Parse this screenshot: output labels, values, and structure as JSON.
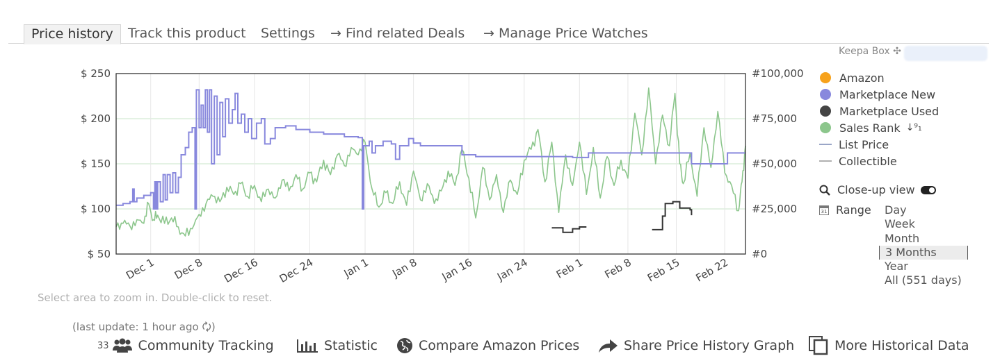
{
  "tabs": [
    {
      "label": "Price history",
      "active": true
    },
    {
      "label": "Track this product"
    },
    {
      "label": "Settings"
    },
    {
      "label": "→ Find related Deals"
    },
    {
      "label": "→ Manage Price Watches"
    }
  ],
  "keepa_box": "Keepa Box ✣",
  "legend": [
    {
      "label": "Amazon",
      "color": "#f7a21b",
      "kind": "dot"
    },
    {
      "label": "Marketplace New",
      "color": "#8888dd",
      "kind": "dot"
    },
    {
      "label": "Marketplace Used",
      "color": "#444444",
      "kind": "dot"
    },
    {
      "label": "Sales Rank",
      "color": "#8cc68c",
      "kind": "dot",
      "suffix": "↓⁹₁"
    },
    {
      "label": "List Price",
      "color": "#9aa6c7",
      "kind": "line"
    },
    {
      "label": "Collectible",
      "color": "#b0b0b0",
      "kind": "line"
    }
  ],
  "closeup_label": "Close-up view",
  "range": {
    "label": "Range",
    "options": [
      "Day",
      "Week",
      "Month",
      "3 Months",
      "Year",
      "All (551 days)"
    ],
    "selected": "3 Months"
  },
  "hint": "Select area to zoom in. Double-click to reset.",
  "last_update": "(last update: 1 hour ago 🗘)",
  "footer": {
    "community_count": "33",
    "community": "Community Tracking",
    "statistic": "Statistic",
    "compare": "Compare Amazon Prices",
    "share": "Share Price History Graph",
    "more": "More Historical Data"
  },
  "chart_data": {
    "type": "line",
    "x_unit": "day offset from Nov 26",
    "x_range": [
      0,
      91
    ],
    "x_ticks": [
      {
        "label": "Dec 1",
        "day": 5
      },
      {
        "label": "Dec 8",
        "day": 12
      },
      {
        "label": "Dec 16",
        "day": 20
      },
      {
        "label": "Dec 24",
        "day": 28
      },
      {
        "label": "Jan 1",
        "day": 36
      },
      {
        "label": "Jan 8",
        "day": 43
      },
      {
        "label": "Jan 16",
        "day": 51
      },
      {
        "label": "Jan 24",
        "day": 59
      },
      {
        "label": "Feb 1",
        "day": 67
      },
      {
        "label": "Feb 8",
        "day": 74
      },
      {
        "label": "Feb 15",
        "day": 81
      },
      {
        "label": "Feb 22",
        "day": 88
      }
    ],
    "y_left": {
      "ticks": [
        "$ 50",
        "$ 100",
        "$ 150",
        "$ 200",
        "$ 250"
      ],
      "values": [
        50,
        100,
        150,
        200,
        250
      ],
      "range": [
        50,
        250
      ]
    },
    "y_right": {
      "ticks": [
        "#0",
        "#25,000",
        "#50,000",
        "#75,000",
        "#100,000"
      ],
      "values": [
        0,
        25000,
        50000,
        75000,
        100000
      ],
      "range": [
        0,
        100000
      ]
    },
    "series": [
      {
        "name": "Marketplace New",
        "axis": "left",
        "color": "#8888dd",
        "points": [
          [
            0,
            104
          ],
          [
            1,
            106
          ],
          [
            2,
            108
          ],
          [
            2.4,
            122
          ],
          [
            2.6,
            108
          ],
          [
            3,
            112
          ],
          [
            4,
            115
          ],
          [
            5,
            118
          ],
          [
            5.4,
            100
          ],
          [
            5.6,
            130
          ],
          [
            5.8,
            100
          ],
          [
            6,
            130
          ],
          [
            6.4,
            108
          ],
          [
            6.8,
            138
          ],
          [
            7.1,
            110
          ],
          [
            7.4,
            138
          ],
          [
            7.8,
            118
          ],
          [
            8.2,
            140
          ],
          [
            8.6,
            118
          ],
          [
            9,
            135
          ],
          [
            9.4,
            160
          ],
          [
            10,
            168
          ],
          [
            10.5,
            185
          ],
          [
            11,
            190
          ],
          [
            11.4,
            100
          ],
          [
            11.6,
            232
          ],
          [
            11.9,
            232
          ],
          [
            12,
            190
          ],
          [
            12.3,
            215
          ],
          [
            12.6,
            190
          ],
          [
            12.9,
            232
          ],
          [
            13.2,
            185
          ],
          [
            13.5,
            232
          ],
          [
            13.8,
            150
          ],
          [
            14.2,
            225
          ],
          [
            14.6,
            160
          ],
          [
            15,
            218
          ],
          [
            15.4,
            180
          ],
          [
            15.8,
            222
          ],
          [
            16.3,
            195
          ],
          [
            16.8,
            210
          ],
          [
            17.2,
            228
          ],
          [
            17.6,
            195
          ],
          [
            18.1,
            205
          ],
          [
            18.6,
            185
          ],
          [
            19.1,
            200
          ],
          [
            19.6,
            178
          ],
          [
            20.3,
            195
          ],
          [
            21,
            200
          ],
          [
            21.5,
            172
          ],
          [
            22.3,
            178
          ],
          [
            23,
            190
          ],
          [
            24.5,
            192
          ],
          [
            26,
            188
          ],
          [
            28,
            185
          ],
          [
            30,
            183
          ],
          [
            33,
            180
          ],
          [
            35,
            179
          ],
          [
            35.6,
            100
          ],
          [
            35.8,
            170
          ],
          [
            36.6,
            175
          ],
          [
            37,
            162
          ],
          [
            37.5,
            170
          ],
          [
            38.6,
            175
          ],
          [
            39.8,
            172
          ],
          [
            40.4,
            155
          ],
          [
            41,
            170
          ],
          [
            42,
            170
          ],
          [
            42.3,
            178
          ],
          [
            43,
            173
          ],
          [
            44,
            170
          ],
          [
            48,
            170
          ],
          [
            50,
            160
          ],
          [
            52,
            158
          ],
          [
            54,
            158
          ],
          [
            58,
            158
          ],
          [
            62,
            158
          ],
          [
            66,
            157
          ],
          [
            68,
            157
          ],
          [
            68.3,
            162
          ],
          [
            75,
            162
          ],
          [
            82,
            162
          ],
          [
            83.2,
            150
          ],
          [
            88,
            150
          ],
          [
            88.4,
            162
          ],
          [
            91,
            162
          ]
        ]
      },
      {
        "name": "Marketplace Used",
        "axis": "left",
        "color": "#333333",
        "segments": [
          [
            [
              63,
              79
            ],
            [
              64.2,
              79
            ],
            [
              64.6,
              74
            ],
            [
              65.6,
              74
            ],
            [
              66,
              78
            ],
            [
              67,
              80
            ],
            [
              68,
              80
            ]
          ],
          [
            [
              77.5,
              77
            ],
            [
              78.5,
              77
            ],
            [
              79,
              92
            ],
            [
              79.4,
              106
            ],
            [
              80.5,
              108
            ],
            [
              81.5,
              101
            ],
            [
              83,
              99
            ],
            [
              83.2,
              93
            ]
          ]
        ]
      },
      {
        "name": "Sales Rank",
        "axis": "right",
        "color": "#8cc68c",
        "points": [
          [
            0,
            15000
          ],
          [
            1,
            17000
          ],
          [
            2,
            15500
          ],
          [
            3,
            19000
          ],
          [
            4,
            17000
          ],
          [
            4.7,
            28000
          ],
          [
            5.4,
            19000
          ],
          [
            6,
            21500
          ],
          [
            7,
            17000
          ],
          [
            8,
            20000
          ],
          [
            9,
            15000
          ],
          [
            10,
            10000
          ],
          [
            11,
            14000
          ],
          [
            12,
            22000
          ],
          [
            13,
            28000
          ],
          [
            14,
            32000
          ],
          [
            15,
            29000
          ],
          [
            16,
            37000
          ],
          [
            17,
            33000
          ],
          [
            18,
            39000
          ],
          [
            19,
            32000
          ],
          [
            20,
            38000
          ],
          [
            21,
            29000
          ],
          [
            22,
            36000
          ],
          [
            23,
            31000
          ],
          [
            24,
            41000
          ],
          [
            25,
            35000
          ],
          [
            26,
            44000
          ],
          [
            27,
            36000
          ],
          [
            28,
            45000
          ],
          [
            29,
            40000
          ],
          [
            30,
            52000
          ],
          [
            31,
            44000
          ],
          [
            32,
            55000
          ],
          [
            33,
            49000
          ],
          [
            34,
            59000
          ],
          [
            35,
            55000
          ],
          [
            36,
            62000
          ],
          [
            37,
            36000
          ],
          [
            38,
            26000
          ],
          [
            39,
            34000
          ],
          [
            40,
            28000
          ],
          [
            41,
            40000
          ],
          [
            42,
            27000
          ],
          [
            43,
            46000
          ],
          [
            44,
            30000
          ],
          [
            45,
            39000
          ],
          [
            46,
            28000
          ],
          [
            47,
            35000
          ],
          [
            48,
            46000
          ],
          [
            49,
            38000
          ],
          [
            50,
            58000
          ],
          [
            51,
            42000
          ],
          [
            52,
            20000
          ],
          [
            53,
            48000
          ],
          [
            54,
            30000
          ],
          [
            55,
            44000
          ],
          [
            56,
            23000
          ],
          [
            57,
            41000
          ],
          [
            58,
            33000
          ],
          [
            59,
            52000
          ],
          [
            60,
            58000
          ],
          [
            61,
            69000
          ],
          [
            62,
            40000
          ],
          [
            63,
            62000
          ],
          [
            64,
            23000
          ],
          [
            65,
            55000
          ],
          [
            66,
            38000
          ],
          [
            67,
            62000
          ],
          [
            68,
            33000
          ],
          [
            69,
            59000
          ],
          [
            70,
            31000
          ],
          [
            71,
            54000
          ],
          [
            72,
            38000
          ],
          [
            73,
            52000
          ],
          [
            74,
            42000
          ],
          [
            75,
            78000
          ],
          [
            76,
            55000
          ],
          [
            77,
            92000
          ],
          [
            78,
            50000
          ],
          [
            79,
            77000
          ],
          [
            80,
            60000
          ],
          [
            80.8,
            89000
          ],
          [
            81.5,
            50000
          ],
          [
            82,
            39000
          ],
          [
            83,
            56000
          ],
          [
            84,
            32000
          ],
          [
            85,
            70000
          ],
          [
            86,
            48000
          ],
          [
            87,
            79000
          ],
          [
            88,
            45000
          ],
          [
            89,
            38000
          ],
          [
            90,
            24000
          ],
          [
            90.5,
            40000
          ],
          [
            91,
            60000
          ]
        ]
      }
    ]
  }
}
